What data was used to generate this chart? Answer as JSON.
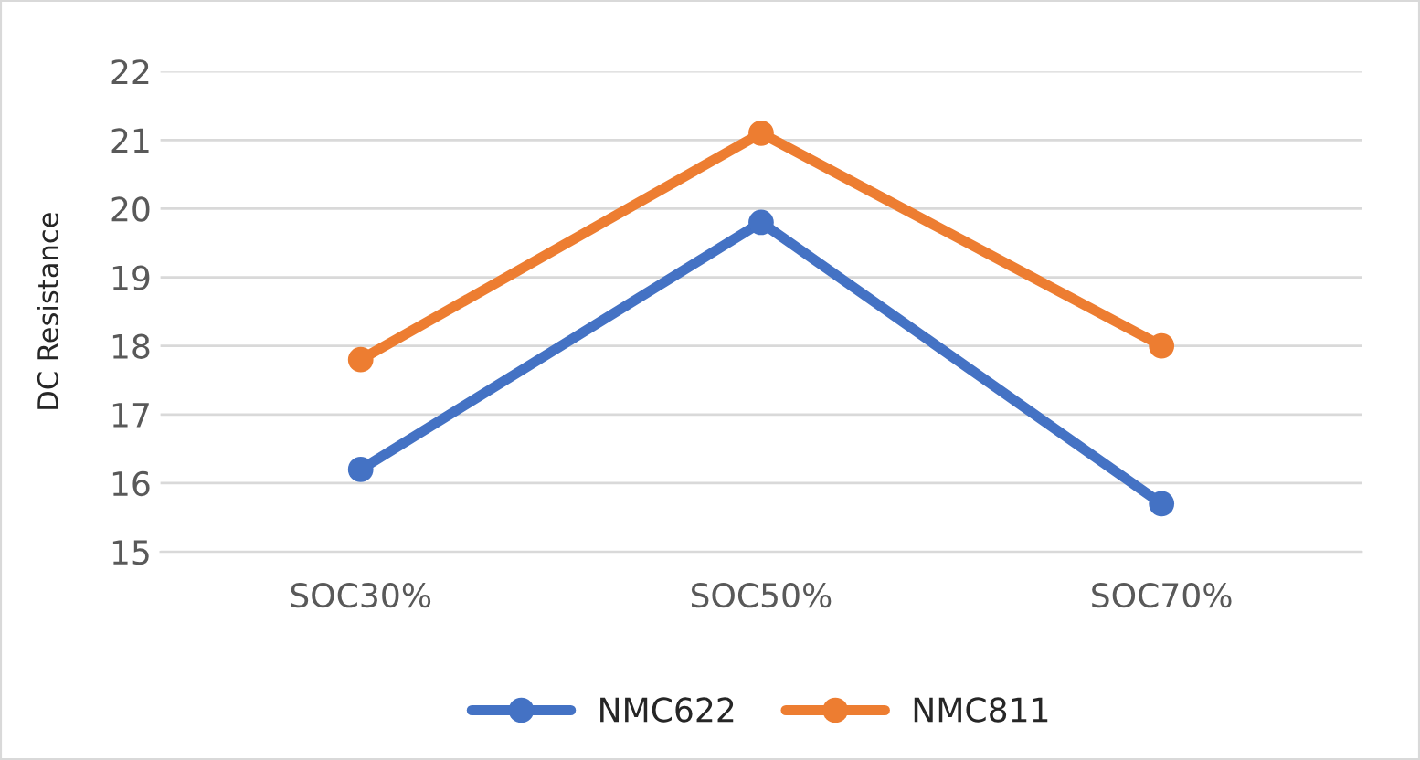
{
  "chart_data": {
    "type": "line",
    "ylabel": "DC Resistance",
    "categories": [
      "SOC30%",
      "SOC50%",
      "SOC70%"
    ],
    "series": [
      {
        "name": "NMC622",
        "color": "#4472c4",
        "values": [
          16.2,
          19.8,
          15.7
        ]
      },
      {
        "name": "NMC811",
        "color": "#ed7d31",
        "values": [
          17.8,
          21.1,
          18.0
        ]
      }
    ],
    "ylim": [
      15,
      22
    ],
    "yticks": [
      15,
      16,
      17,
      18,
      19,
      20,
      21,
      22
    ],
    "grid": "y",
    "legend": "bottom",
    "marker": "circle",
    "line_style": "solid"
  }
}
